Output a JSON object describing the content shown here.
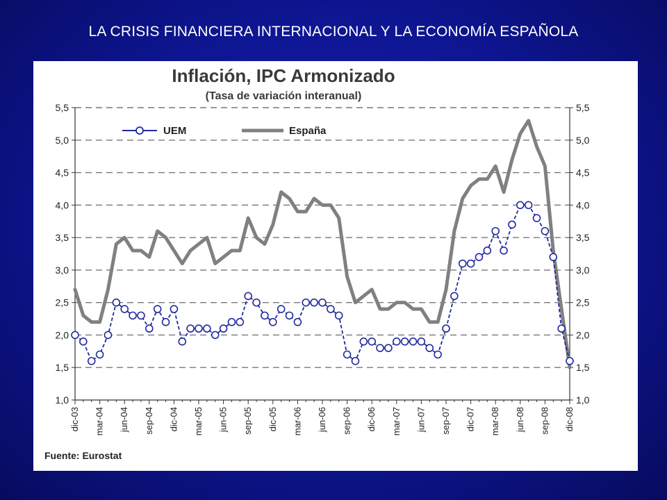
{
  "slide_title": "LA CRISIS FINANCIERA INTERNACIONAL  Y LA ECONOMÍA ESPAÑOLA",
  "colors": {
    "uem": "#1f2a9e",
    "espana": "#808080",
    "background": "#0d1590"
  },
  "chart_data": {
    "type": "line",
    "title": "Inflación, IPC Armonizado",
    "subtitle": "(Tasa de variación interanual)",
    "source": "Fuente: Eurostat",
    "ylim": [
      1.0,
      5.5
    ],
    "yticks": [
      "1,0",
      "1,5",
      "2,0",
      "2,5",
      "3,0",
      "3,5",
      "4,0",
      "4,5",
      "5,0",
      "5,5"
    ],
    "grid": "horizontal dashed",
    "legend": "top-left",
    "x_tick_labels": [
      "dic-03",
      "mar-04",
      "jun-04",
      "sep-04",
      "dic-04",
      "mar-05",
      "jun-05",
      "sep-05",
      "dic-05",
      "mar-06",
      "jun-06",
      "sep-06",
      "dic-06",
      "mar-07",
      "jun-07",
      "sep-07",
      "dic-07",
      "mar-08",
      "jun-08",
      "sep-08",
      "dic-08"
    ],
    "series": [
      {
        "name": "UEM",
        "marker": "circle",
        "values": [
          2.0,
          1.9,
          1.6,
          1.7,
          2.0,
          2.5,
          2.4,
          2.3,
          2.3,
          2.1,
          2.4,
          2.2,
          2.4,
          1.9,
          2.1,
          2.1,
          2.1,
          2.0,
          2.1,
          2.2,
          2.2,
          2.6,
          2.5,
          2.3,
          2.2,
          2.4,
          2.3,
          2.2,
          2.5,
          2.5,
          2.5,
          2.4,
          2.3,
          1.7,
          1.6,
          1.9,
          1.9,
          1.8,
          1.8,
          1.9,
          1.9,
          1.9,
          1.9,
          1.8,
          1.7,
          2.1,
          2.6,
          3.1,
          3.1,
          3.2,
          3.3,
          3.6,
          3.3,
          3.7,
          4.0,
          4.0,
          3.8,
          3.6,
          3.2,
          2.1,
          1.6
        ]
      },
      {
        "name": "España",
        "marker": "none",
        "values": [
          2.7,
          2.3,
          2.2,
          2.2,
          2.7,
          3.4,
          3.5,
          3.3,
          3.3,
          3.2,
          3.6,
          3.5,
          3.3,
          3.1,
          3.3,
          3.4,
          3.5,
          3.1,
          3.2,
          3.3,
          3.3,
          3.8,
          3.5,
          3.4,
          3.7,
          4.2,
          4.1,
          3.9,
          3.9,
          4.1,
          4.0,
          4.0,
          3.8,
          2.9,
          2.5,
          2.6,
          2.7,
          2.4,
          2.4,
          2.5,
          2.5,
          2.4,
          2.4,
          2.2,
          2.2,
          2.7,
          3.6,
          4.1,
          4.3,
          4.4,
          4.4,
          4.6,
          4.2,
          4.7,
          5.1,
          5.3,
          4.9,
          4.6,
          3.3,
          2.4,
          1.5
        ]
      }
    ]
  }
}
